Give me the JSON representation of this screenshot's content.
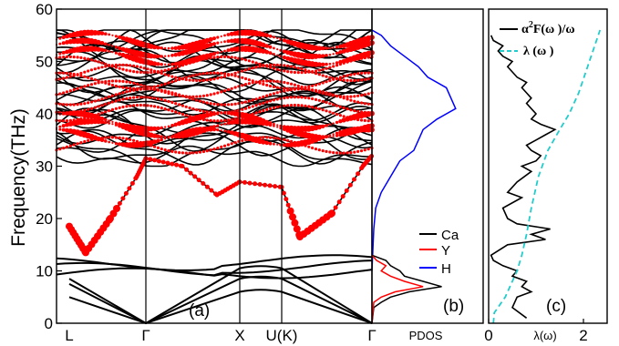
{
  "chart_data": [
    {
      "type": "line",
      "panel_label": "(a)",
      "ylabel": "Frequency(THz)",
      "ylim": [
        0,
        60
      ],
      "yticks": [
        0,
        10,
        20,
        30,
        40,
        50,
        60
      ],
      "high_symmetry_points": [
        {
          "label": "L",
          "k": 0.0
        },
        {
          "label": "Γ",
          "k": 1.0
        },
        {
          "label": "X",
          "k": 1.0
        },
        {
          "label": "U(K)",
          "k": 0.3
        },
        {
          "label": "Γ",
          "k": 1.0
        }
      ],
      "series_colors": {
        "bands": "#000000",
        "phonon_linewidth": "#ff0000"
      },
      "acoustic_bands_thz": {
        "L": [
          5.0,
          7.5,
          8.5
        ],
        "Γ": [
          0,
          0,
          0
        ],
        "X": [
          6.0,
          8.5,
          10.5
        ],
        "U(K)": [
          6.0,
          8.5,
          10.5
        ],
        "Γ_end": [
          0,
          0,
          0
        ]
      },
      "low_optical_bands_thz": [
        10.5,
        11.5,
        12.5
      ],
      "lowest_hydrogen_branch_thz": {
        "L": 18.5,
        "L_min": 13.5,
        "Γ": 31.5,
        "X": 24.5,
        "U_min": 16.5,
        "Γ_end": 32.0
      },
      "hydrogen_band_region_thz": [
        24,
        56
      ]
    },
    {
      "type": "line",
      "panel_label": "(b)",
      "xlabel": "PDOS",
      "ylim": [
        0,
        60
      ],
      "legend": [
        {
          "name": "Ca",
          "color": "#000000"
        },
        {
          "name": "Y",
          "color": "#ff0000"
        },
        {
          "name": "H",
          "color": "#0000ff"
        }
      ],
      "legend_position": "right-middle",
      "Ca": {
        "frequency": [
          0,
          3,
          4,
          5,
          6,
          7,
          8,
          9,
          10,
          11,
          12,
          13
        ],
        "pdos": [
          0,
          0.02,
          0.1,
          0.2,
          0.4,
          0.75,
          0.55,
          0.35,
          0.3,
          0.2,
          0.15,
          0
        ]
      },
      "Y": {
        "frequency": [
          0,
          4,
          5,
          6,
          7,
          8,
          9,
          10,
          11,
          12,
          13
        ],
        "pdos": [
          0,
          0.02,
          0.1,
          0.25,
          0.55,
          0.35,
          0.2,
          0.1,
          0.15,
          0.05,
          0
        ]
      },
      "H": {
        "frequency": [
          10,
          14,
          18,
          22,
          25,
          28,
          31,
          33,
          35,
          37,
          39,
          41,
          43,
          45,
          47,
          49,
          51,
          53,
          55,
          56
        ],
        "pdos": [
          0,
          0.01,
          0.02,
          0.04,
          0.1,
          0.2,
          0.3,
          0.45,
          0.5,
          0.55,
          0.7,
          0.9,
          0.85,
          0.8,
          0.6,
          0.5,
          0.35,
          0.2,
          0.1,
          0
        ]
      }
    },
    {
      "type": "line",
      "panel_label": "(c)",
      "xlabel": "λ(ω)",
      "xticks": [
        0,
        2
      ],
      "xlim": [
        0,
        2.5
      ],
      "ylim": [
        0,
        60
      ],
      "legend": [
        {
          "name": "α²F(ω)/ω",
          "color": "#000000",
          "style": "solid",
          "display_base": "α",
          "display_sup": "2",
          "display_rest": "F(ω )/ω"
        },
        {
          "name": "λ(ω)",
          "color": "#22cccc",
          "style": "dashed",
          "display": "λ (ω )"
        }
      ],
      "legend_position": "top-right",
      "alpha2F_over_omega": {
        "frequency": [
          1,
          3,
          5,
          6,
          7,
          8,
          9,
          10,
          11,
          12,
          13,
          15,
          16,
          17,
          18,
          19,
          20,
          22,
          24,
          25,
          27,
          29,
          30,
          31,
          32,
          33,
          34,
          35,
          36,
          37,
          38,
          39,
          40,
          41,
          42,
          43,
          44,
          45,
          46,
          47,
          48,
          49,
          50,
          51,
          52,
          53,
          54,
          55
        ],
        "value": [
          0.8,
          0.5,
          0.6,
          0.9,
          0.7,
          0.8,
          0.5,
          0.6,
          0.3,
          0.1,
          0.05,
          0.4,
          1.2,
          0.9,
          1.3,
          0.6,
          0.4,
          0.3,
          0.7,
          0.4,
          0.6,
          0.9,
          0.7,
          1.0,
          1.1,
          0.9,
          0.8,
          1.0,
          1.2,
          1.4,
          1.1,
          0.9,
          1.0,
          0.9,
          0.8,
          0.9,
          0.8,
          0.7,
          0.8,
          0.6,
          0.5,
          0.4,
          0.5,
          0.3,
          0.2,
          0.3,
          0.1,
          0.05
        ]
      },
      "lambda_omega": {
        "frequency": [
          0,
          2,
          5,
          8,
          10,
          13,
          17,
          22,
          28,
          33,
          37,
          40,
          44,
          48,
          52,
          56
        ],
        "value": [
          0.1,
          0.12,
          0.35,
          0.5,
          0.6,
          0.7,
          0.8,
          0.9,
          1.05,
          1.25,
          1.5,
          1.7,
          1.9,
          2.05,
          2.2,
          2.35
        ]
      }
    }
  ]
}
